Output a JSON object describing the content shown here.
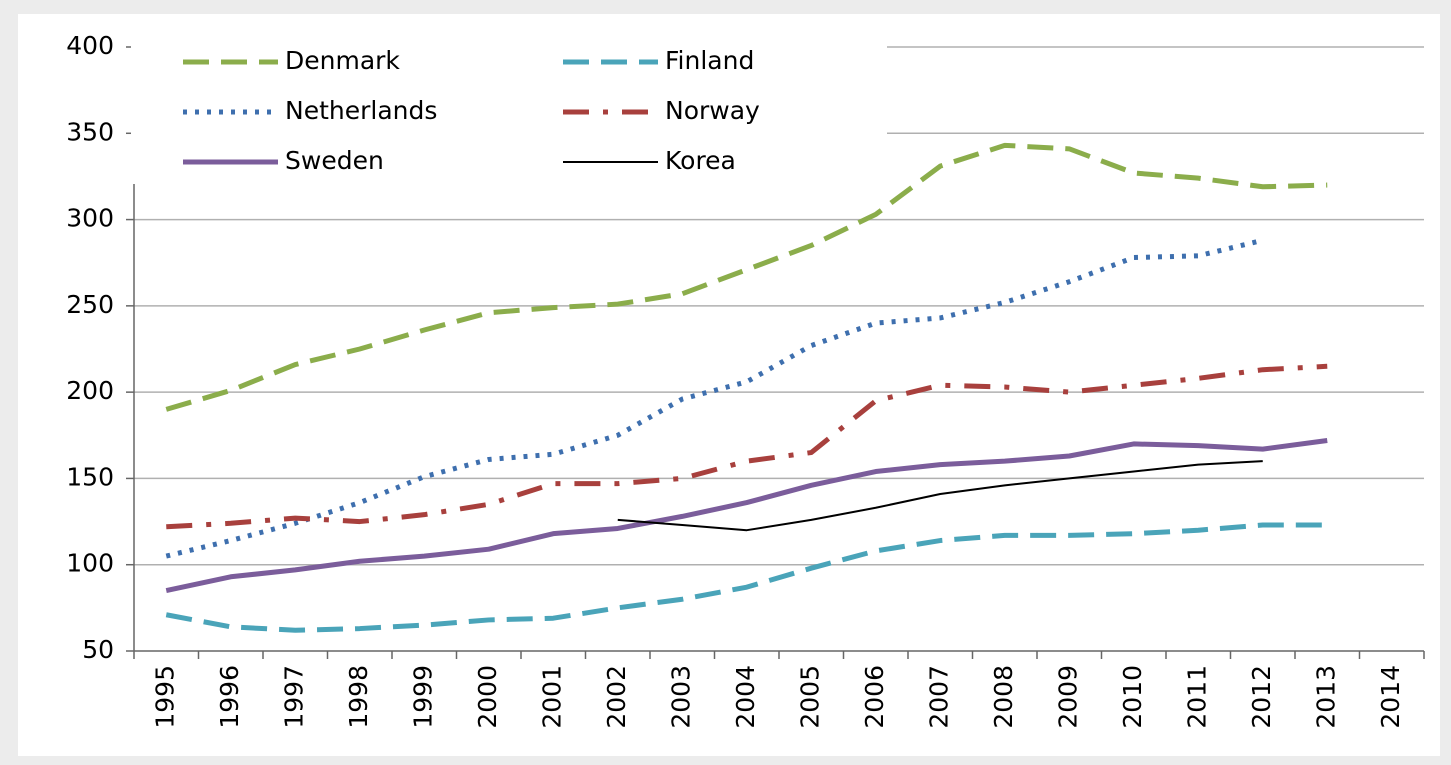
{
  "chart_data": {
    "type": "line",
    "categories": [
      "1995",
      "1996",
      "1997",
      "1998",
      "1999",
      "2000",
      "2001",
      "2002",
      "2003",
      "2004",
      "2005",
      "2006",
      "2007",
      "2008",
      "2009",
      "2010",
      "2011",
      "2012",
      "2013",
      "2014"
    ],
    "series": [
      {
        "name": "Denmark",
        "color": "#8bad4b",
        "linestyle": "dashed",
        "linewidth": 5,
        "values": [
          190,
          201,
          216,
          225,
          236,
          246,
          249,
          251,
          257,
          271,
          285,
          303,
          331,
          343,
          341,
          327,
          324,
          319,
          320,
          null
        ]
      },
      {
        "name": "Finland",
        "color": "#4aa4b9",
        "linestyle": "dashed",
        "linewidth": 5,
        "values": [
          71,
          64,
          62,
          63,
          65,
          68,
          69,
          75,
          80,
          87,
          98,
          108,
          114,
          117,
          117,
          118,
          120,
          123,
          123,
          null
        ]
      },
      {
        "name": "Netherlands",
        "color": "#3e6fae",
        "linestyle": "dotted",
        "linewidth": 5,
        "values": [
          105,
          114,
          124,
          136,
          151,
          161,
          164,
          175,
          196,
          206,
          227,
          240,
          243,
          252,
          264,
          278,
          279,
          288,
          null,
          null
        ]
      },
      {
        "name": "Norway",
        "color": "#a8403d",
        "linestyle": "dashdot",
        "linewidth": 5,
        "values": [
          122,
          124,
          127,
          125,
          129,
          135,
          147,
          147,
          150,
          160,
          165,
          195,
          204,
          203,
          200,
          204,
          208,
          213,
          215,
          null
        ]
      },
      {
        "name": "Sweden",
        "color": "#7b5d9b",
        "linestyle": "solid",
        "linewidth": 5,
        "values": [
          85,
          93,
          97,
          102,
          105,
          109,
          118,
          121,
          128,
          136,
          146,
          154,
          158,
          160,
          163,
          170,
          169,
          167,
          172,
          null
        ]
      },
      {
        "name": "Korea",
        "color": "#000000",
        "linestyle": "solid",
        "linewidth": 2,
        "values": [
          null,
          null,
          null,
          null,
          null,
          null,
          null,
          126,
          123,
          120,
          126,
          133,
          141,
          146,
          150,
          154,
          158,
          160,
          null,
          null
        ]
      }
    ],
    "ylim": [
      50,
      400
    ],
    "yticks": [
      50,
      100,
      150,
      200,
      250,
      300,
      350,
      400
    ],
    "grid": true,
    "legend": "upper left"
  }
}
